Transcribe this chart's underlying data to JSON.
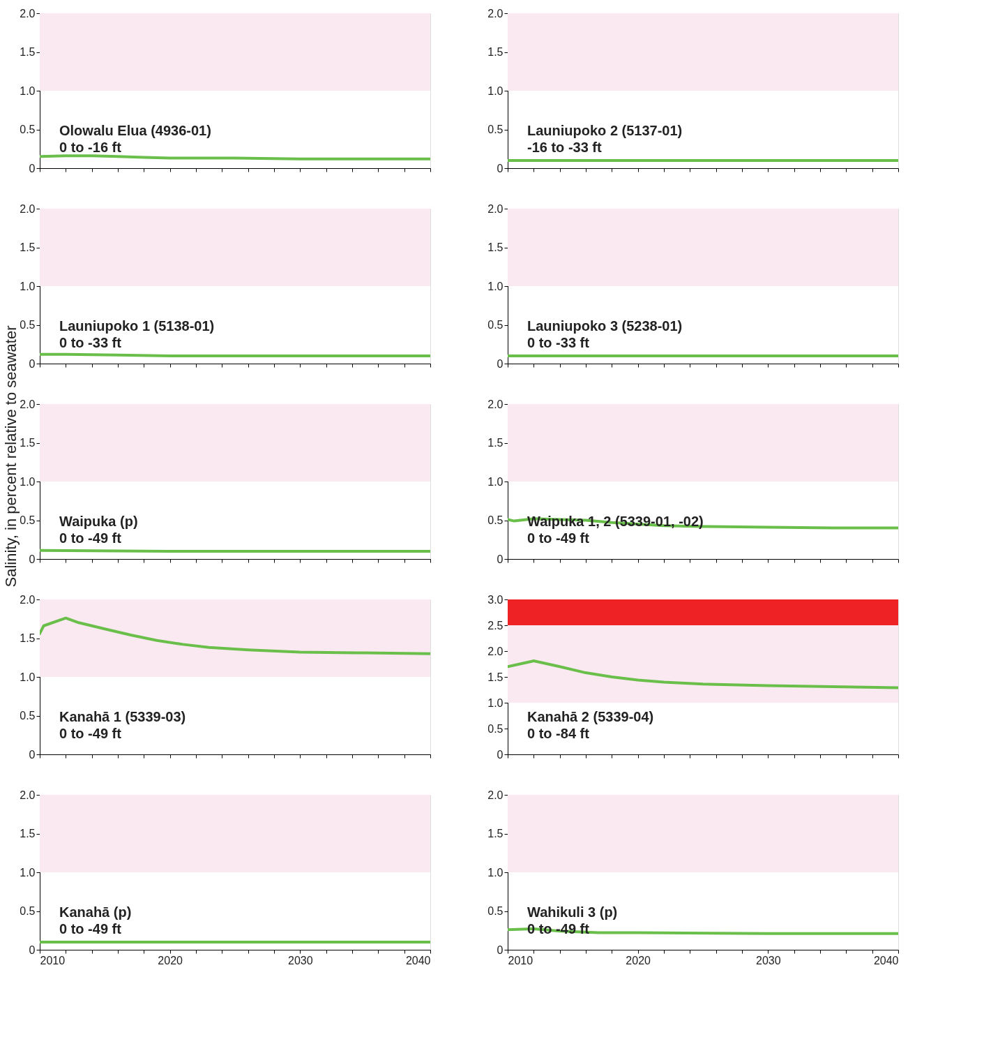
{
  "chart_data": [
    {
      "type": "line",
      "x": [
        2010,
        2012,
        2014,
        2016,
        2018,
        2020,
        2022,
        2025,
        2030,
        2035,
        2040
      ],
      "series": [
        {
          "color": "#6abf4b",
          "values": [
            0.15,
            0.16,
            0.16,
            0.15,
            0.14,
            0.13,
            0.13,
            0.13,
            0.12,
            0.12,
            0.12
          ]
        }
      ],
      "xlim": [
        2010,
        2040
      ],
      "xticks": [
        2010,
        {
          "value": 2012,
          "label": null
        },
        {
          "value": 2014,
          "label": null
        },
        {
          "value": 2016,
          "label": null
        },
        {
          "value": 2018,
          "label": null
        },
        2020,
        {
          "value": 2022,
          "label": null
        },
        {
          "value": 2024,
          "label": null
        },
        {
          "value": 2026,
          "label": null
        },
        {
          "value": 2028,
          "label": null
        },
        2030,
        {
          "value": 2032,
          "label": null
        },
        {
          "value": 2034,
          "label": null
        },
        {
          "value": 2036,
          "label": null
        },
        {
          "value": 2038,
          "label": null
        },
        2040
      ],
      "ylim": [
        0,
        2
      ],
      "yticks": [
        0,
        0.5,
        {
          "value": 1,
          "label": "1.0"
        },
        1.5,
        {
          "value": 2,
          "label": "2.0"
        }
      ],
      "bands": [
        {
          "axis": "y",
          "from": 1,
          "to": 2,
          "color": "#fbe9f1"
        }
      ],
      "annotations": [
        "Olowalu Elua (4936-01)",
        "0 to -16 ft"
      ],
      "tick_labels": "y",
      "grid": false,
      "legend": false
    },
    {
      "type": "line",
      "x": [
        2010,
        2040
      ],
      "series": [
        {
          "color": "#6abf4b",
          "values": [
            0.1,
            0.1
          ]
        }
      ],
      "xlim": [
        2010,
        2040
      ],
      "xticks": [
        2010,
        {
          "value": 2012,
          "label": null
        },
        {
          "value": 2014,
          "label": null
        },
        {
          "value": 2016,
          "label": null
        },
        {
          "value": 2018,
          "label": null
        },
        2020,
        {
          "value": 2022,
          "label": null
        },
        {
          "value": 2024,
          "label": null
        },
        {
          "value": 2026,
          "label": null
        },
        {
          "value": 2028,
          "label": null
        },
        2030,
        {
          "value": 2032,
          "label": null
        },
        {
          "value": 2034,
          "label": null
        },
        {
          "value": 2036,
          "label": null
        },
        {
          "value": 2038,
          "label": null
        },
        2040
      ],
      "ylim": [
        0,
        2
      ],
      "yticks": [
        0,
        0.5,
        {
          "value": 1,
          "label": "1.0"
        },
        1.5,
        {
          "value": 2,
          "label": "2.0"
        }
      ],
      "bands": [
        {
          "axis": "y",
          "from": 1,
          "to": 2,
          "color": "#fbe9f1"
        }
      ],
      "annotations": [
        "Launiupoko 2 (5137-01)",
        "-16 to -33 ft"
      ],
      "tick_labels": "y",
      "grid": false,
      "legend": false
    },
    {
      "type": "line",
      "x": [
        2010,
        2012,
        2016,
        2020,
        2040
      ],
      "series": [
        {
          "color": "#6abf4b",
          "values": [
            0.12,
            0.12,
            0.11,
            0.1,
            0.1
          ]
        }
      ],
      "xlim": [
        2010,
        2040
      ],
      "xticks": [
        2010,
        {
          "value": 2012,
          "label": null
        },
        {
          "value": 2014,
          "label": null
        },
        {
          "value": 2016,
          "label": null
        },
        {
          "value": 2018,
          "label": null
        },
        2020,
        {
          "value": 2022,
          "label": null
        },
        {
          "value": 2024,
          "label": null
        },
        {
          "value": 2026,
          "label": null
        },
        {
          "value": 2028,
          "label": null
        },
        2030,
        {
          "value": 2032,
          "label": null
        },
        {
          "value": 2034,
          "label": null
        },
        {
          "value": 2036,
          "label": null
        },
        {
          "value": 2038,
          "label": null
        },
        2040
      ],
      "ylim": [
        0,
        2
      ],
      "yticks": [
        0,
        0.5,
        {
          "value": 1,
          "label": "1.0"
        },
        1.5,
        {
          "value": 2,
          "label": "2.0"
        }
      ],
      "bands": [
        {
          "axis": "y",
          "from": 1,
          "to": 2,
          "color": "#fbe9f1"
        }
      ],
      "annotations": [
        "Launiupoko 1 (5138-01)",
        "0 to -33 ft"
      ],
      "tick_labels": "y",
      "grid": false,
      "legend": false
    },
    {
      "type": "line",
      "x": [
        2010,
        2040
      ],
      "series": [
        {
          "color": "#6abf4b",
          "values": [
            0.1,
            0.1
          ]
        }
      ],
      "xlim": [
        2010,
        2040
      ],
      "xticks": [
        2010,
        {
          "value": 2012,
          "label": null
        },
        {
          "value": 2014,
          "label": null
        },
        {
          "value": 2016,
          "label": null
        },
        {
          "value": 2018,
          "label": null
        },
        2020,
        {
          "value": 2022,
          "label": null
        },
        {
          "value": 2024,
          "label": null
        },
        {
          "value": 2026,
          "label": null
        },
        {
          "value": 2028,
          "label": null
        },
        2030,
        {
          "value": 2032,
          "label": null
        },
        {
          "value": 2034,
          "label": null
        },
        {
          "value": 2036,
          "label": null
        },
        {
          "value": 2038,
          "label": null
        },
        2040
      ],
      "ylim": [
        0,
        2
      ],
      "yticks": [
        0,
        0.5,
        {
          "value": 1,
          "label": "1.0"
        },
        1.5,
        {
          "value": 2,
          "label": "2.0"
        }
      ],
      "bands": [
        {
          "axis": "y",
          "from": 1,
          "to": 2,
          "color": "#fbe9f1"
        }
      ],
      "annotations": [
        "Launiupoko 3 (5238-01)",
        "0 to -33 ft"
      ],
      "tick_labels": "y",
      "grid": false,
      "legend": false
    },
    {
      "type": "line",
      "x": [
        2010,
        2020,
        2040
      ],
      "series": [
        {
          "color": "#6abf4b",
          "values": [
            0.11,
            0.1,
            0.1
          ]
        }
      ],
      "xlim": [
        2010,
        2040
      ],
      "xticks": [
        2010,
        {
          "value": 2012,
          "label": null
        },
        {
          "value": 2014,
          "label": null
        },
        {
          "value": 2016,
          "label": null
        },
        {
          "value": 2018,
          "label": null
        },
        2020,
        {
          "value": 2022,
          "label": null
        },
        {
          "value": 2024,
          "label": null
        },
        {
          "value": 2026,
          "label": null
        },
        {
          "value": 2028,
          "label": null
        },
        2030,
        {
          "value": 2032,
          "label": null
        },
        {
          "value": 2034,
          "label": null
        },
        {
          "value": 2036,
          "label": null
        },
        {
          "value": 2038,
          "label": null
        },
        2040
      ],
      "ylim": [
        0,
        2
      ],
      "yticks": [
        0,
        0.5,
        {
          "value": 1,
          "label": "1.0"
        },
        1.5,
        {
          "value": 2,
          "label": "2.0"
        }
      ],
      "bands": [
        {
          "axis": "y",
          "from": 1,
          "to": 2,
          "color": "#fbe9f1"
        }
      ],
      "annotations": [
        "Waipuka (p)",
        "0 to -49 ft"
      ],
      "ylabel": "Salinity, in percent relative to seawater",
      "tick_labels": "y",
      "grid": false,
      "legend": false
    },
    {
      "type": "line",
      "x": [
        2010,
        2010.5,
        2012,
        2014,
        2016,
        2018,
        2020,
        2022,
        2025,
        2030,
        2035,
        2040
      ],
      "series": [
        {
          "color": "#6abf4b",
          "values": [
            0.51,
            0.49,
            0.52,
            0.51,
            0.5,
            0.47,
            0.45,
            0.43,
            0.42,
            0.41,
            0.4,
            0.4
          ]
        }
      ],
      "xlim": [
        2010,
        2040
      ],
      "xticks": [
        2010,
        {
          "value": 2012,
          "label": null
        },
        {
          "value": 2014,
          "label": null
        },
        {
          "value": 2016,
          "label": null
        },
        {
          "value": 2018,
          "label": null
        },
        2020,
        {
          "value": 2022,
          "label": null
        },
        {
          "value": 2024,
          "label": null
        },
        {
          "value": 2026,
          "label": null
        },
        {
          "value": 2028,
          "label": null
        },
        2030,
        {
          "value": 2032,
          "label": null
        },
        {
          "value": 2034,
          "label": null
        },
        {
          "value": 2036,
          "label": null
        },
        {
          "value": 2038,
          "label": null
        },
        2040
      ],
      "ylim": [
        0,
        2
      ],
      "yticks": [
        0,
        0.5,
        {
          "value": 1,
          "label": "1.0"
        },
        1.5,
        {
          "value": 2,
          "label": "2.0"
        }
      ],
      "bands": [
        {
          "axis": "y",
          "from": 1,
          "to": 2,
          "color": "#fbe9f1"
        }
      ],
      "annotations": [
        "Waipuka 1, 2 (5339-01, -02)",
        "0 to -49 ft"
      ],
      "tick_labels": "y",
      "grid": false,
      "legend": false
    },
    {
      "type": "line",
      "x": [
        2010,
        2010.3,
        2012,
        2013,
        2015,
        2017,
        2019,
        2021,
        2023,
        2026,
        2030,
        2035,
        2040
      ],
      "series": [
        {
          "color": "#6abf4b",
          "values": [
            1.56,
            1.66,
            1.76,
            1.7,
            1.62,
            1.54,
            1.47,
            1.42,
            1.38,
            1.35,
            1.32,
            1.31,
            1.3
          ]
        }
      ],
      "xlim": [
        2010,
        2040
      ],
      "xticks": [
        2010,
        {
          "value": 2012,
          "label": null
        },
        {
          "value": 2014,
          "label": null
        },
        {
          "value": 2016,
          "label": null
        },
        {
          "value": 2018,
          "label": null
        },
        2020,
        {
          "value": 2022,
          "label": null
        },
        {
          "value": 2024,
          "label": null
        },
        {
          "value": 2026,
          "label": null
        },
        {
          "value": 2028,
          "label": null
        },
        2030,
        {
          "value": 2032,
          "label": null
        },
        {
          "value": 2034,
          "label": null
        },
        {
          "value": 2036,
          "label": null
        },
        {
          "value": 2038,
          "label": null
        },
        2040
      ],
      "ylim": [
        0,
        2
      ],
      "yticks": [
        0,
        0.5,
        {
          "value": 1,
          "label": "1.0"
        },
        1.5,
        {
          "value": 2,
          "label": "2.0"
        }
      ],
      "bands": [
        {
          "axis": "y",
          "from": 1,
          "to": 2,
          "color": "#fbe9f1"
        }
      ],
      "annotations": [
        "Kanahā 1 (5339-03)",
        "0 to -49 ft"
      ],
      "tick_labels": "y",
      "grid": false,
      "legend": false
    },
    {
      "type": "line",
      "x": [
        2010,
        2012,
        2014,
        2016,
        2018,
        2020,
        2022,
        2025,
        2030,
        2035,
        2040
      ],
      "series": [
        {
          "color": "#6abf4b",
          "values": [
            1.7,
            1.81,
            1.7,
            1.58,
            1.5,
            1.44,
            1.4,
            1.36,
            1.33,
            1.31,
            1.29
          ]
        }
      ],
      "xlim": [
        2010,
        2040
      ],
      "xticks": [
        2010,
        {
          "value": 2012,
          "label": null
        },
        {
          "value": 2014,
          "label": null
        },
        {
          "value": 2016,
          "label": null
        },
        {
          "value": 2018,
          "label": null
        },
        2020,
        {
          "value": 2022,
          "label": null
        },
        {
          "value": 2024,
          "label": null
        },
        {
          "value": 2026,
          "label": null
        },
        {
          "value": 2028,
          "label": null
        },
        2030,
        {
          "value": 2032,
          "label": null
        },
        {
          "value": 2034,
          "label": null
        },
        {
          "value": 2036,
          "label": null
        },
        {
          "value": 2038,
          "label": null
        },
        2040
      ],
      "ylim": [
        0,
        3
      ],
      "yticks": [
        0,
        0.5,
        {
          "value": 1,
          "label": "1.0"
        },
        1.5,
        {
          "value": 2,
          "label": "2.0"
        },
        2.5,
        {
          "value": 3,
          "label": "3.0"
        }
      ],
      "bands": [
        {
          "axis": "y",
          "from": 1,
          "to": 2.5,
          "color": "#fbe9f1"
        },
        {
          "axis": "y",
          "from": 2.5,
          "to": 3,
          "color": "#ee2224"
        }
      ],
      "annotations": [
        "Kanahā 2 (5339-04)",
        "0 to -84 ft"
      ],
      "tick_labels": "y",
      "grid": false,
      "legend": false
    },
    {
      "type": "line",
      "x": [
        2010,
        2040
      ],
      "series": [
        {
          "color": "#6abf4b",
          "values": [
            0.1,
            0.1
          ]
        }
      ],
      "xlim": [
        2010,
        2040
      ],
      "xticks": [
        2010,
        {
          "value": 2012,
          "label": null
        },
        {
          "value": 2014,
          "label": null
        },
        {
          "value": 2016,
          "label": null
        },
        {
          "value": 2018,
          "label": null
        },
        2020,
        {
          "value": 2022,
          "label": null
        },
        {
          "value": 2024,
          "label": null
        },
        {
          "value": 2026,
          "label": null
        },
        {
          "value": 2028,
          "label": null
        },
        2030,
        {
          "value": 2032,
          "label": null
        },
        {
          "value": 2034,
          "label": null
        },
        {
          "value": 2036,
          "label": null
        },
        {
          "value": 2038,
          "label": null
        },
        2040
      ],
      "ylim": [
        0,
        2
      ],
      "yticks": [
        0,
        0.5,
        {
          "value": 1,
          "label": "1.0"
        },
        1.5,
        {
          "value": 2,
          "label": "2.0"
        }
      ],
      "bands": [
        {
          "axis": "y",
          "from": 1,
          "to": 2,
          "color": "#fbe9f1"
        }
      ],
      "annotations": [
        "Kanahā (p)",
        "0 to -49 ft"
      ],
      "grid": false,
      "legend": false
    },
    {
      "type": "line",
      "x": [
        2010,
        2012,
        2014,
        2017,
        2020,
        2030,
        2040
      ],
      "series": [
        {
          "color": "#6abf4b",
          "values": [
            0.26,
            0.27,
            0.24,
            0.22,
            0.22,
            0.21,
            0.21
          ]
        }
      ],
      "xlim": [
        2010,
        2040
      ],
      "xticks": [
        2010,
        {
          "value": 2012,
          "label": null
        },
        {
          "value": 2014,
          "label": null
        },
        {
          "value": 2016,
          "label": null
        },
        {
          "value": 2018,
          "label": null
        },
        2020,
        {
          "value": 2022,
          "label": null
        },
        {
          "value": 2024,
          "label": null
        },
        {
          "value": 2026,
          "label": null
        },
        {
          "value": 2028,
          "label": null
        },
        2030,
        {
          "value": 2032,
          "label": null
        },
        {
          "value": 2034,
          "label": null
        },
        {
          "value": 2036,
          "label": null
        },
        {
          "value": 2038,
          "label": null
        },
        2040
      ],
      "ylim": [
        0,
        2
      ],
      "yticks": [
        0,
        0.5,
        {
          "value": 1,
          "label": "1.0"
        },
        1.5,
        {
          "value": 2,
          "label": "2.0"
        }
      ],
      "bands": [
        {
          "axis": "y",
          "from": 1,
          "to": 2,
          "color": "#fbe9f1"
        }
      ],
      "annotations": [
        "Wahikuli 3 (p)",
        "0 to -49 ft"
      ],
      "grid": false,
      "legend": false
    }
  ]
}
